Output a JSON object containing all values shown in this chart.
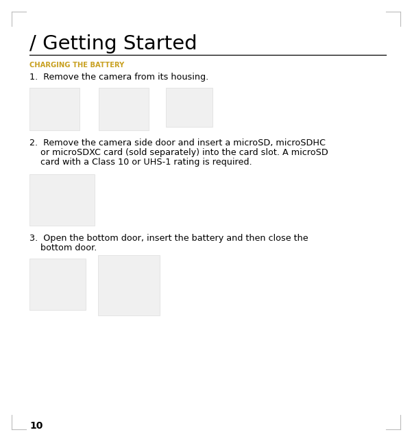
{
  "bg_color": "#ffffff",
  "title": "/ Getting Started",
  "section_label": "CHARGING THE BATTERY",
  "step1_text": "1.  Remove the camera from its housing.",
  "step2_line1": "2.  Remove the camera side door and insert a microSD, microSDHC",
  "step2_line2": "    or microSDXC card (sold separately) into the card slot. A microSD",
  "step2_line3": "    card with a Class 10 or UHS-1 rating is required.",
  "step3_line1": "3.  Open the bottom door, insert the battery and then close the",
  "step3_line2": "    bottom door.",
  "page_num": "10",
  "body_fontsize": 9.2,
  "title_fontsize": 21,
  "section_fontsize": 7.2,
  "page_num_fontsize": 10,
  "corner_color": "#bbbbbb",
  "rule_color": "#000000",
  "section_color": "#c8a020",
  "text_color": "#000000"
}
